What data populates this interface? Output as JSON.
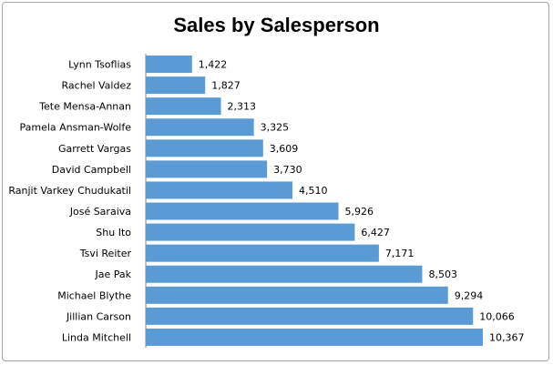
{
  "chart_data": {
    "type": "bar",
    "orientation": "horizontal",
    "title": "Sales by Salesperson",
    "xlabel": "",
    "ylabel": "",
    "grid": false,
    "legend": "none",
    "bar_color": "#5b9bd5",
    "categories": [
      "Lynn Tsoflias",
      "Rachel Valdez",
      "Tete Mensa-Annan",
      "Pamela Ansman-Wolfe",
      "Garrett Vargas",
      "David Campbell",
      "Ranjit Varkey Chudukatil",
      "José Saraiva",
      "Shu Ito",
      "Tsvi Reiter",
      "Jae Pak",
      "Michael Blythe",
      "Jillian Carson",
      "Linda Mitchell"
    ],
    "values": [
      1422,
      1827,
      2313,
      3325,
      3609,
      3730,
      4510,
      5926,
      6427,
      7171,
      8503,
      9294,
      10066,
      10367
    ],
    "data_labels": [
      "1,422",
      "1,827",
      "2,313",
      "3,325",
      "3,609",
      "3,730",
      "4,510",
      "5,926",
      "6,427",
      "7,171",
      "8,503",
      "9,294",
      "10,066",
      "10,367"
    ],
    "xlim": [
      0,
      10367
    ]
  }
}
